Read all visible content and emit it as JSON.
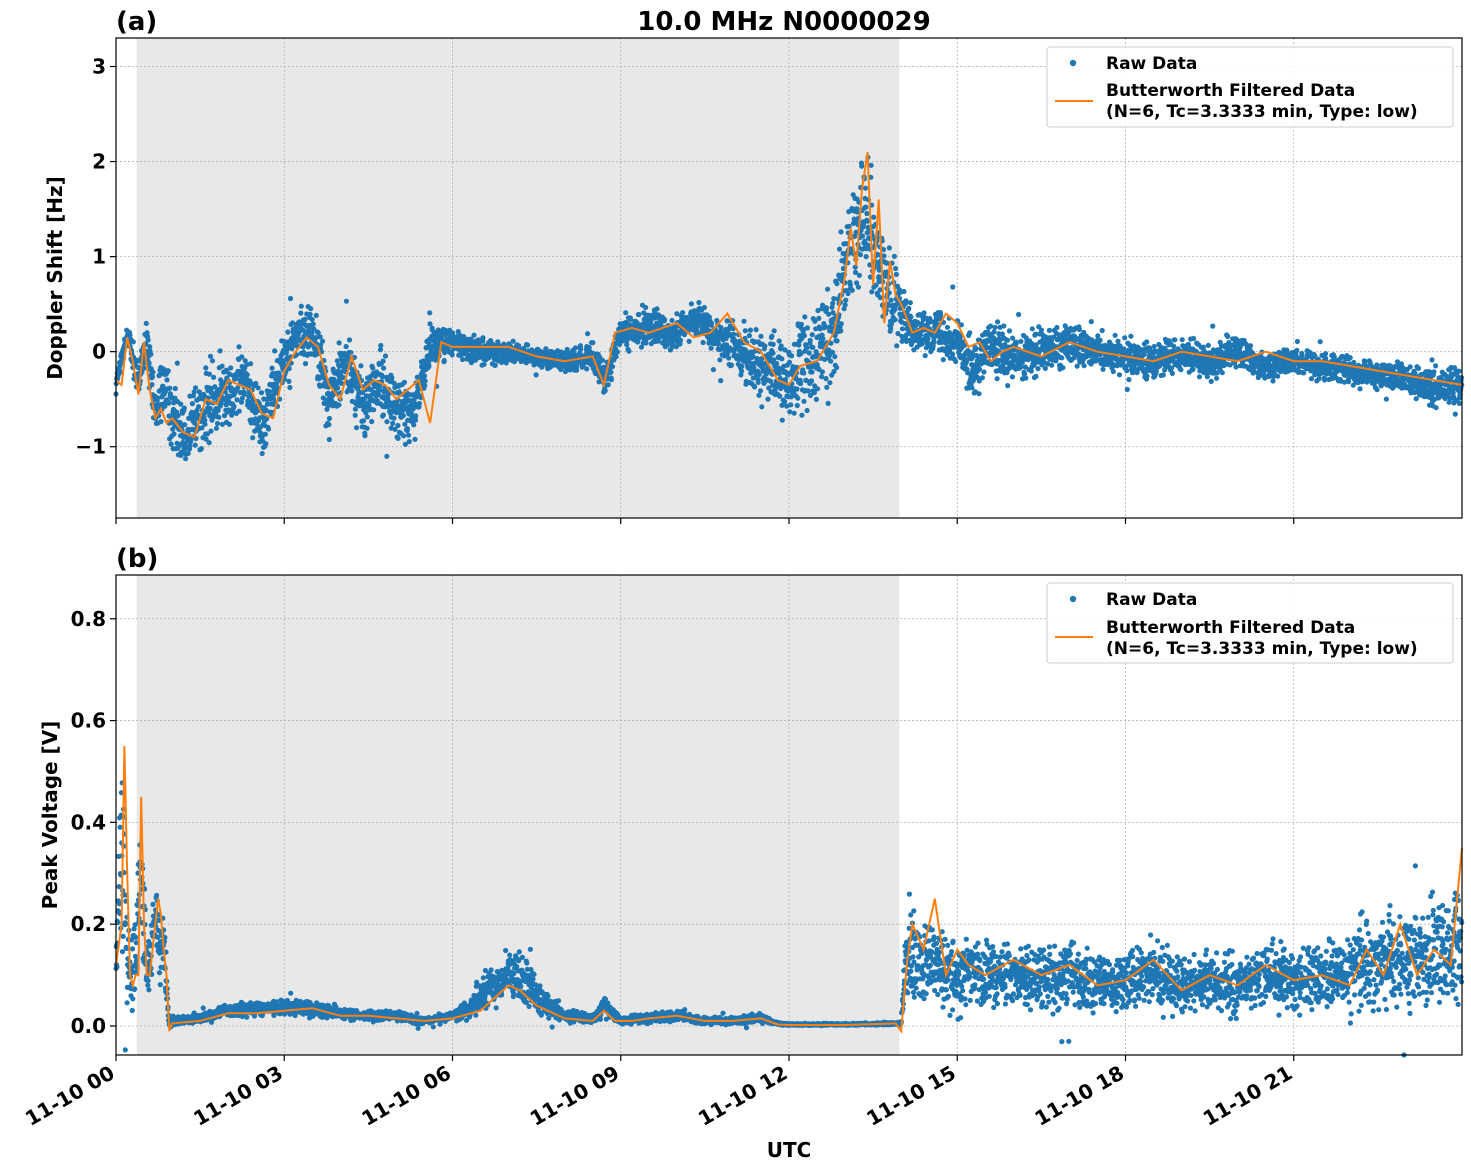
{
  "figure_title": "10.0 MHz N0000029",
  "x_axis_label": "UTC",
  "x_tick_labels": [
    "11-10 00",
    "11-10 03",
    "11-10 06",
    "11-10 09",
    "11-10 12",
    "11-10 15",
    "11-10 18",
    "11-10 21"
  ],
  "colors": {
    "raw": "#1f77b4",
    "filtered": "#ff7f0e",
    "shade": "#e8e8e8",
    "grid": "#b0b0b0"
  },
  "chart_data": [
    {
      "type": "scatter",
      "panel_label": "(a)",
      "ylabel": "Doppler Shift [Hz]",
      "xlim_hours": [
        0,
        24
      ],
      "ylim": [
        -1.75,
        3.3
      ],
      "y_ticks": [
        -1,
        0,
        1,
        2,
        3
      ],
      "y_tick_labels": [
        "−1",
        "0",
        "1",
        "2",
        "3"
      ],
      "grid": true,
      "legend_position": "top-right",
      "legend": [
        "Raw Data",
        "Butterworth Filtered Data",
        "(N=6, Tc=3.3333 min, Type: low)"
      ],
      "shaded_interval_hours": [
        0.37,
        13.97
      ],
      "series": [
        {
          "name": "Raw Data",
          "kind": "points",
          "x_hours": [
            0.0,
            0.2,
            0.4,
            0.55,
            0.7,
            0.85,
            1.0,
            1.3,
            1.6,
            2.0,
            2.3,
            2.6,
            2.9,
            3.2,
            3.5,
            3.8,
            4.1,
            4.4,
            4.7,
            5.0,
            5.3,
            5.6,
            5.8,
            6.2,
            6.6,
            7.0,
            7.5,
            8.0,
            8.5,
            8.7,
            9.0,
            9.5,
            10.0,
            10.4,
            10.8,
            11.2,
            11.6,
            12.0,
            12.4,
            12.8,
            13.0,
            13.2,
            13.4,
            13.6,
            13.8,
            14.0,
            14.3,
            14.6,
            15.0,
            15.3,
            15.6,
            16.0,
            16.5,
            17.0,
            17.5,
            18.0,
            18.5,
            19.0,
            19.5,
            20.0,
            20.5,
            21.0,
            21.5,
            22.0,
            22.5,
            23.0,
            23.5,
            24.0
          ],
          "y_center": [
            -0.35,
            0.2,
            -0.3,
            0.1,
            -0.7,
            -0.3,
            -0.7,
            -0.8,
            -0.6,
            -0.4,
            -0.3,
            -0.8,
            -0.2,
            0.15,
            0.2,
            -0.5,
            -0.1,
            -0.6,
            -0.3,
            -0.6,
            -0.7,
            0.1,
            0.1,
            0.05,
            0.0,
            0.0,
            -0.05,
            -0.1,
            -0.05,
            -0.3,
            0.2,
            0.25,
            0.2,
            0.35,
            0.1,
            0.0,
            -0.2,
            -0.3,
            -0.1,
            0.2,
            0.9,
            1.3,
            1.5,
            0.9,
            0.6,
            0.4,
            0.2,
            0.25,
            0.1,
            -0.2,
            0.05,
            -0.1,
            0.0,
            0.1,
            0.0,
            -0.05,
            -0.1,
            -0.05,
            -0.1,
            0.0,
            -0.15,
            -0.1,
            -0.15,
            -0.2,
            -0.25,
            -0.3,
            -0.4,
            -0.35
          ],
          "y_spread": [
            0.12,
            0.12,
            0.25,
            0.25,
            0.35,
            0.35,
            0.4,
            0.45,
            0.45,
            0.4,
            0.35,
            0.4,
            0.35,
            0.3,
            0.35,
            0.35,
            0.35,
            0.4,
            0.35,
            0.35,
            0.35,
            0.3,
            0.2,
            0.15,
            0.15,
            0.12,
            0.1,
            0.12,
            0.15,
            0.2,
            0.2,
            0.2,
            0.2,
            0.2,
            0.25,
            0.3,
            0.4,
            0.5,
            0.5,
            0.6,
            0.5,
            0.6,
            0.7,
            0.6,
            0.5,
            0.35,
            0.2,
            0.25,
            0.3,
            0.3,
            0.3,
            0.3,
            0.25,
            0.25,
            0.2,
            0.2,
            0.2,
            0.2,
            0.2,
            0.2,
            0.15,
            0.15,
            0.15,
            0.15,
            0.15,
            0.18,
            0.22,
            0.2
          ],
          "n_points": 5200
        },
        {
          "name": "Butterworth Filtered Data",
          "kind": "line",
          "x_hours": [
            0.0,
            0.1,
            0.2,
            0.3,
            0.4,
            0.5,
            0.6,
            0.7,
            0.8,
            0.9,
            1.0,
            1.2,
            1.4,
            1.6,
            1.8,
            2.0,
            2.2,
            2.4,
            2.6,
            2.8,
            3.0,
            3.2,
            3.4,
            3.6,
            3.8,
            4.0,
            4.2,
            4.4,
            4.6,
            4.8,
            5.0,
            5.2,
            5.4,
            5.6,
            5.8,
            6.0,
            6.5,
            7.0,
            7.5,
            8.0,
            8.5,
            8.7,
            8.9,
            9.2,
            9.5,
            10.0,
            10.3,
            10.6,
            10.9,
            11.2,
            11.5,
            11.8,
            12.0,
            12.2,
            12.5,
            12.8,
            13.0,
            13.1,
            13.2,
            13.3,
            13.4,
            13.5,
            13.6,
            13.7,
            13.8,
            13.9,
            14.0,
            14.2,
            14.4,
            14.6,
            14.8,
            15.0,
            15.2,
            15.4,
            15.6,
            15.8,
            16.0,
            16.5,
            17.0,
            17.5,
            18.0,
            18.5,
            19.0,
            19.5,
            20.0,
            20.5,
            21.0,
            21.5,
            22.0,
            22.5,
            23.0,
            23.5,
            24.0
          ],
          "y": [
            -0.3,
            -0.35,
            0.15,
            -0.1,
            -0.45,
            0.1,
            -0.4,
            -0.7,
            -0.6,
            -0.75,
            -0.7,
            -0.85,
            -0.9,
            -0.5,
            -0.55,
            -0.3,
            -0.35,
            -0.4,
            -0.65,
            -0.7,
            -0.2,
            0.0,
            0.15,
            0.05,
            -0.35,
            -0.5,
            -0.05,
            -0.4,
            -0.3,
            -0.35,
            -0.5,
            -0.4,
            -0.3,
            -0.75,
            0.1,
            0.05,
            0.05,
            0.05,
            -0.05,
            -0.1,
            -0.05,
            -0.35,
            0.2,
            0.25,
            0.2,
            0.3,
            0.15,
            0.2,
            0.4,
            0.1,
            0.0,
            -0.3,
            -0.35,
            -0.15,
            -0.1,
            0.2,
            0.8,
            1.3,
            0.9,
            1.7,
            2.1,
            0.7,
            1.6,
            0.3,
            0.95,
            0.6,
            0.5,
            0.2,
            0.25,
            0.2,
            0.4,
            0.3,
            0.05,
            0.1,
            -0.1,
            0.0,
            0.05,
            -0.05,
            0.1,
            0.0,
            -0.05,
            -0.1,
            0.0,
            -0.05,
            -0.1,
            0.0,
            -0.1,
            -0.1,
            -0.15,
            -0.2,
            -0.25,
            -0.3,
            -0.35
          ]
        }
      ]
    },
    {
      "type": "scatter",
      "panel_label": "(b)",
      "ylabel": "Peak Voltage [V]",
      "xlim_hours": [
        0,
        24
      ],
      "ylim": [
        -0.057,
        0.886
      ],
      "y_ticks": [
        0.0,
        0.2,
        0.4,
        0.6,
        0.8
      ],
      "y_tick_labels": [
        "0.0",
        "0.2",
        "0.4",
        "0.6",
        "0.8"
      ],
      "grid": true,
      "legend_position": "top-right",
      "legend": [
        "Raw Data",
        "Butterworth Filtered Data",
        "(N=6, Tc=3.3333 min, Type: low)"
      ],
      "shaded_interval_hours": [
        0.37,
        13.97
      ],
      "series": [
        {
          "name": "Raw Data",
          "kind": "points",
          "x_hours": [
            0.0,
            0.1,
            0.15,
            0.25,
            0.35,
            0.45,
            0.55,
            0.7,
            0.85,
            0.95,
            1.0,
            1.5,
            2.0,
            2.5,
            3.0,
            3.5,
            4.0,
            4.5,
            5.0,
            5.5,
            6.0,
            6.3,
            6.6,
            7.0,
            7.3,
            7.6,
            8.0,
            8.5,
            8.7,
            9.0,
            9.5,
            10.0,
            10.5,
            11.0,
            11.5,
            11.8,
            12.0,
            13.0,
            14.0,
            14.1,
            14.3,
            14.6,
            15.0,
            15.5,
            16.0,
            16.5,
            17.0,
            17.5,
            18.0,
            18.5,
            19.0,
            19.5,
            20.0,
            20.5,
            21.0,
            21.5,
            22.0,
            22.5,
            23.0,
            23.5,
            24.0
          ],
          "y_center": [
            0.12,
            0.35,
            0.3,
            0.1,
            0.15,
            0.3,
            0.1,
            0.2,
            0.15,
            0.0,
            0.01,
            0.015,
            0.03,
            0.035,
            0.035,
            0.035,
            0.025,
            0.02,
            0.02,
            0.01,
            0.02,
            0.03,
            0.07,
            0.1,
            0.09,
            0.05,
            0.02,
            0.015,
            0.04,
            0.01,
            0.015,
            0.02,
            0.01,
            0.01,
            0.015,
            0.005,
            0.003,
            0.003,
            0.005,
            0.15,
            0.12,
            0.12,
            0.1,
            0.1,
            0.1,
            0.09,
            0.1,
            0.08,
            0.09,
            0.1,
            0.08,
            0.09,
            0.08,
            0.1,
            0.09,
            0.1,
            0.11,
            0.12,
            0.13,
            0.15,
            0.15
          ],
          "y_spread": [
            0.06,
            0.2,
            0.2,
            0.08,
            0.1,
            0.15,
            0.08,
            0.1,
            0.08,
            0.01,
            0.008,
            0.01,
            0.015,
            0.015,
            0.015,
            0.015,
            0.012,
            0.01,
            0.01,
            0.008,
            0.01,
            0.02,
            0.04,
            0.05,
            0.05,
            0.03,
            0.012,
            0.01,
            0.02,
            0.008,
            0.01,
            0.01,
            0.008,
            0.008,
            0.01,
            0.003,
            0.002,
            0.002,
            0.003,
            0.12,
            0.1,
            0.09,
            0.08,
            0.07,
            0.07,
            0.06,
            0.07,
            0.06,
            0.06,
            0.07,
            0.06,
            0.06,
            0.06,
            0.07,
            0.06,
            0.07,
            0.08,
            0.09,
            0.1,
            0.12,
            0.13
          ],
          "n_points": 5200
        },
        {
          "name": "Butterworth Filtered Data",
          "kind": "line",
          "x_hours": [
            0.0,
            0.1,
            0.15,
            0.2,
            0.25,
            0.3,
            0.35,
            0.4,
            0.45,
            0.5,
            0.55,
            0.6,
            0.7,
            0.75,
            0.8,
            0.85,
            0.9,
            0.95,
            1.0,
            1.5,
            2.0,
            2.5,
            3.0,
            3.5,
            4.0,
            4.5,
            5.0,
            5.5,
            6.0,
            6.5,
            6.8,
            7.0,
            7.2,
            7.5,
            8.0,
            8.5,
            8.7,
            8.9,
            9.2,
            9.5,
            10.0,
            10.5,
            11.0,
            11.5,
            11.8,
            12.0,
            13.0,
            13.9,
            14.0,
            14.1,
            14.2,
            14.4,
            14.6,
            14.8,
            15.0,
            15.2,
            15.5,
            16.0,
            16.5,
            17.0,
            17.5,
            18.0,
            18.5,
            19.0,
            19.5,
            20.0,
            20.5,
            21.0,
            21.5,
            22.0,
            22.3,
            22.6,
            22.9,
            23.2,
            23.5,
            23.8,
            24.0
          ],
          "y": [
            0.12,
            0.2,
            0.55,
            0.3,
            0.1,
            0.08,
            0.1,
            0.1,
            0.45,
            0.2,
            0.1,
            0.1,
            0.2,
            0.25,
            0.22,
            0.15,
            0.1,
            -0.01,
            0.005,
            0.01,
            0.025,
            0.025,
            0.03,
            0.035,
            0.02,
            0.02,
            0.015,
            0.01,
            0.015,
            0.03,
            0.06,
            0.08,
            0.07,
            0.04,
            0.015,
            0.01,
            0.03,
            0.01,
            0.01,
            0.015,
            0.02,
            0.01,
            0.01,
            0.015,
            0.003,
            0.002,
            0.002,
            0.005,
            -0.01,
            0.12,
            0.2,
            0.15,
            0.25,
            0.1,
            0.15,
            0.12,
            0.1,
            0.13,
            0.1,
            0.12,
            0.08,
            0.09,
            0.13,
            0.07,
            0.1,
            0.08,
            0.12,
            0.09,
            0.1,
            0.08,
            0.15,
            0.1,
            0.2,
            0.1,
            0.15,
            0.12,
            0.35
          ]
        }
      ]
    }
  ]
}
